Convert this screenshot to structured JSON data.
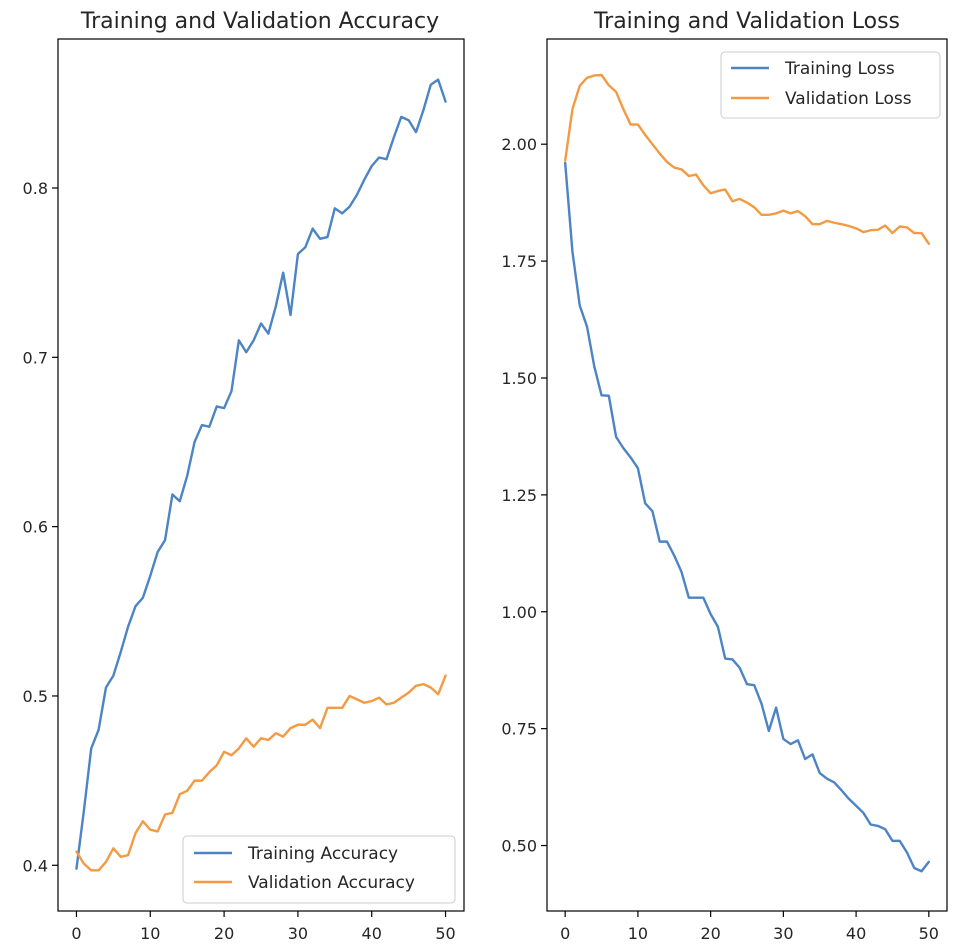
{
  "colors": {
    "training": "#4c84c4",
    "validation": "#f39a42"
  },
  "chart_data": [
    {
      "type": "line",
      "title": "Training and Validation Accuracy",
      "xlabel": "",
      "ylabel": "",
      "xlim": [
        -2.5,
        52.5
      ],
      "ylim": [
        0.373,
        0.888
      ],
      "x_ticks": [
        0,
        10,
        20,
        30,
        40,
        50
      ],
      "y_ticks": [
        0.4,
        0.5,
        0.6,
        0.7,
        0.8
      ],
      "y_tick_labels": [
        "0.4",
        "0.5",
        "0.6",
        "0.7",
        "0.8"
      ],
      "legend_position": "lower-right",
      "grid": false,
      "series": [
        {
          "name": "Training Accuracy",
          "color_key": "training",
          "values": [
            0.398,
            0.432,
            0.469,
            0.48,
            0.505,
            0.512,
            0.526,
            0.541,
            0.553,
            0.558,
            0.571,
            0.585,
            0.592,
            0.619,
            0.615,
            0.63,
            0.65,
            0.66,
            0.659,
            0.671,
            0.67,
            0.68,
            0.71,
            0.703,
            0.71,
            0.72,
            0.714,
            0.73,
            0.75,
            0.725,
            0.761,
            0.765,
            0.776,
            0.77,
            0.771,
            0.788,
            0.785,
            0.789,
            0.796,
            0.805,
            0.813,
            0.818,
            0.817,
            0.83,
            0.842,
            0.84,
            0.833,
            0.846,
            0.861,
            0.864,
            0.851
          ]
        },
        {
          "name": "Validation Accuracy",
          "color_key": "validation",
          "values": [
            0.408,
            0.401,
            0.397,
            0.397,
            0.402,
            0.41,
            0.405,
            0.406,
            0.419,
            0.426,
            0.421,
            0.42,
            0.43,
            0.431,
            0.442,
            0.444,
            0.45,
            0.45,
            0.455,
            0.459,
            0.467,
            0.465,
            0.469,
            0.475,
            0.47,
            0.475,
            0.474,
            0.478,
            0.476,
            0.481,
            0.483,
            0.483,
            0.486,
            0.481,
            0.493,
            0.493,
            0.493,
            0.5,
            0.498,
            0.496,
            0.497,
            0.499,
            0.495,
            0.496,
            0.499,
            0.502,
            0.506,
            0.507,
            0.505,
            0.501,
            0.512
          ]
        }
      ]
    },
    {
      "type": "line",
      "title": "Training and Validation Loss",
      "xlabel": "",
      "ylabel": "",
      "xlim": [
        -2.5,
        52.5
      ],
      "ylim": [
        0.36,
        2.225
      ],
      "x_ticks": [
        0,
        10,
        20,
        30,
        40,
        50
      ],
      "y_ticks": [
        0.5,
        0.75,
        1.0,
        1.25,
        1.5,
        1.75,
        2.0
      ],
      "y_tick_labels": [
        "0.50",
        "0.75",
        "1.00",
        "1.25",
        "1.50",
        "1.75",
        "2.00"
      ],
      "legend_position": "upper-right",
      "grid": false,
      "series": [
        {
          "name": "Training Loss",
          "color_key": "training",
          "values": [
            1.96,
            1.77,
            1.655,
            1.61,
            1.525,
            1.463,
            1.462,
            1.374,
            1.35,
            1.33,
            1.307,
            1.232,
            1.215,
            1.15,
            1.15,
            1.12,
            1.085,
            1.03,
            1.03,
            1.03,
            0.995,
            0.968,
            0.9,
            0.898,
            0.88,
            0.845,
            0.843,
            0.803,
            0.745,
            0.795,
            0.728,
            0.717,
            0.725,
            0.685,
            0.695,
            0.655,
            0.643,
            0.635,
            0.618,
            0.6,
            0.585,
            0.57,
            0.545,
            0.542,
            0.535,
            0.51,
            0.51,
            0.485,
            0.452,
            0.445,
            0.465
          ]
        },
        {
          "name": "Validation Loss",
          "color_key": "validation",
          "values": [
            1.965,
            2.075,
            2.125,
            2.142,
            2.147,
            2.148,
            2.126,
            2.112,
            2.075,
            2.042,
            2.042,
            2.02,
            2.0,
            1.98,
            1.962,
            1.95,
            1.946,
            1.932,
            1.935,
            1.912,
            1.895,
            1.9,
            1.903,
            1.878,
            1.883,
            1.875,
            1.865,
            1.849,
            1.849,
            1.852,
            1.858,
            1.852,
            1.857,
            1.846,
            1.829,
            1.829,
            1.836,
            1.832,
            1.829,
            1.825,
            1.82,
            1.812,
            1.816,
            1.817,
            1.826,
            1.81,
            1.824,
            1.822,
            1.81,
            1.81,
            1.787
          ]
        }
      ]
    }
  ]
}
